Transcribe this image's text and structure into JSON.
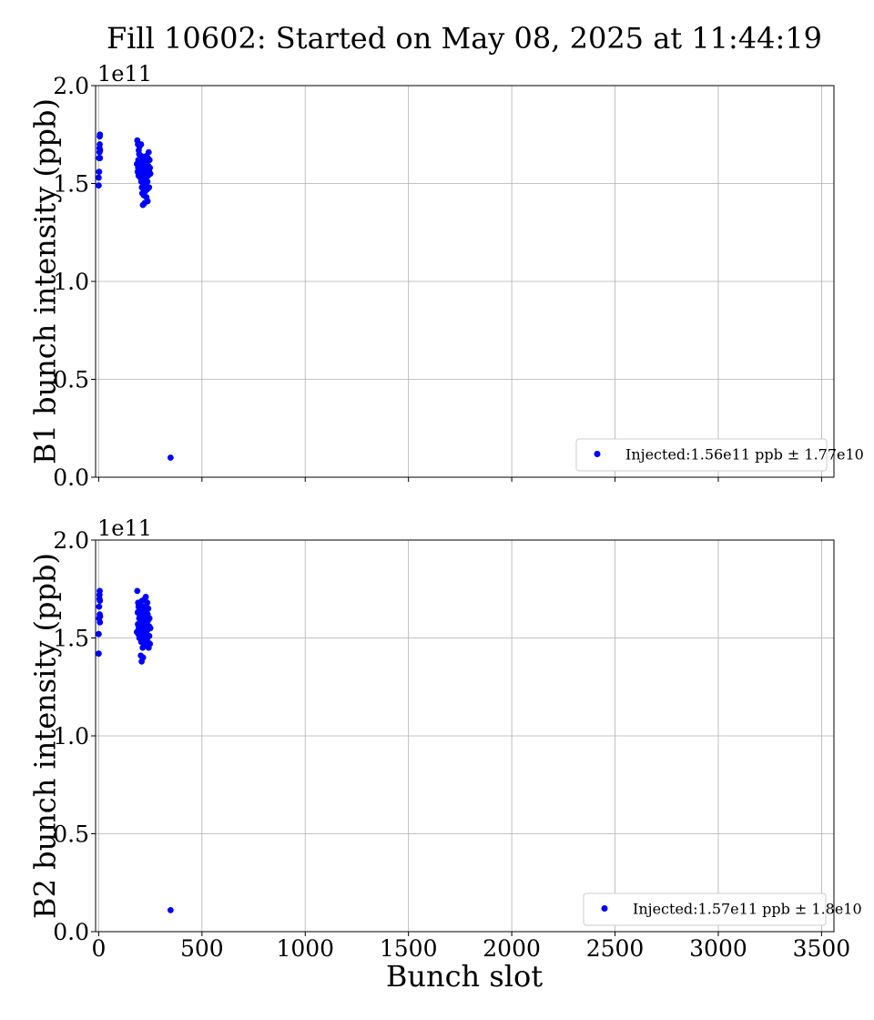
{
  "chart_data": {
    "type": "scatter",
    "title": "Fill 10602: Started on May 08, 2025 at 11:44:19",
    "xlabel": "Bunch slot",
    "xlim": [
      -15,
      3560
    ],
    "x_ticks": [
      0,
      500,
      1000,
      1500,
      2000,
      2500,
      3000,
      3500
    ],
    "x_tick_labels": [
      "0",
      "500",
      "1000",
      "1500",
      "2000",
      "2500",
      "3000",
      "3500"
    ],
    "grid": true,
    "marker_color": "#0000ff",
    "legend_position": "lower-right",
    "panels": [
      {
        "ylabel": "B1 bunch intensity (ppb)",
        "y_multiplier": "1e11",
        "ylim": [
          0,
          2.0
        ],
        "y_ticks": [
          0,
          0.5,
          1.0,
          1.5,
          2.0
        ],
        "y_tick_labels": [
          "0.0",
          "0.5",
          "1.0",
          "1.5",
          "2.0"
        ],
        "series": [
          {
            "name": "Injected:1.56e11 ppb ± 1.77e10",
            "x": [
              0,
              0,
              2,
              2,
              4,
              4,
              5,
              5,
              6,
              6,
              7,
              185,
              187,
              189,
              190,
              191,
              192,
              193,
              194,
              195,
              196,
              197,
              198,
              199,
              200,
              202,
              204,
              205,
              206,
              207,
              208,
              209,
              210,
              211,
              212,
              213,
              214,
              215,
              216,
              217,
              218,
              219,
              220,
              222,
              224,
              225,
              226,
              227,
              228,
              229,
              230,
              231,
              232,
              233,
              234,
              235,
              236,
              237,
              238,
              239,
              240,
              242,
              244,
              245,
              246,
              248,
              250,
              348
            ],
            "y": [
              1.49,
              1.53,
              1.56,
              1.63,
              1.66,
              1.68,
              1.7,
              1.74,
              1.75,
              1.63,
              1.67,
              1.6,
              1.72,
              1.56,
              1.7,
              1.58,
              1.62,
              1.54,
              1.67,
              1.59,
              1.65,
              1.57,
              1.69,
              1.55,
              1.61,
              1.53,
              1.6,
              1.7,
              1.51,
              1.64,
              1.57,
              1.48,
              1.62,
              1.45,
              1.59,
              1.55,
              1.39,
              1.63,
              1.5,
              1.58,
              1.44,
              1.61,
              1.53,
              1.4,
              1.56,
              1.46,
              1.62,
              1.52,
              1.58,
              1.49,
              1.64,
              1.43,
              1.55,
              1.6,
              1.47,
              1.57,
              1.51,
              1.41,
              1.63,
              1.54,
              1.59,
              1.66,
              1.48,
              1.56,
              1.62,
              1.58,
              1.55,
              0.1
            ]
          }
        ]
      },
      {
        "ylabel": "B2 bunch intensity (ppb)",
        "y_multiplier": "1e11",
        "ylim": [
          0,
          2.0
        ],
        "y_ticks": [
          0,
          0.5,
          1.0,
          1.5,
          2.0
        ],
        "y_tick_labels": [
          "0.0",
          "0.5",
          "1.0",
          "1.5",
          "2.0"
        ],
        "series": [
          {
            "name": "Injected:1.57e11 ppb ± 1.8e10",
            "x": [
              0,
              0,
              2,
              2,
              4,
              4,
              5,
              5,
              6,
              6,
              7,
              185,
              187,
              189,
              190,
              191,
              192,
              193,
              194,
              195,
              196,
              197,
              198,
              199,
              200,
              202,
              204,
              205,
              206,
              207,
              208,
              209,
              210,
              211,
              212,
              213,
              214,
              215,
              216,
              217,
              218,
              219,
              220,
              222,
              224,
              225,
              226,
              227,
              228,
              229,
              230,
              231,
              232,
              233,
              234,
              235,
              236,
              237,
              238,
              239,
              240,
              242,
              244,
              245,
              246,
              248,
              250,
              348
            ],
            "y": [
              1.42,
              1.52,
              1.6,
              1.66,
              1.7,
              1.72,
              1.74,
              1.62,
              1.58,
              1.69,
              1.61,
              1.53,
              1.74,
              1.63,
              1.57,
              1.68,
              1.52,
              1.66,
              1.55,
              1.64,
              1.6,
              1.5,
              1.67,
              1.54,
              1.61,
              1.58,
              1.41,
              1.65,
              1.48,
              1.62,
              1.38,
              1.56,
              1.69,
              1.51,
              1.63,
              1.45,
              1.59,
              1.4,
              1.66,
              1.53,
              1.6,
              1.47,
              1.64,
              1.55,
              1.7,
              1.49,
              1.61,
              1.57,
              1.71,
              1.52,
              1.66,
              1.46,
              1.63,
              1.58,
              1.5,
              1.68,
              1.54,
              1.62,
              1.48,
              1.59,
              1.65,
              1.45,
              1.56,
              1.51,
              1.6,
              1.47,
              1.55,
              0.11
            ]
          }
        ]
      }
    ]
  }
}
